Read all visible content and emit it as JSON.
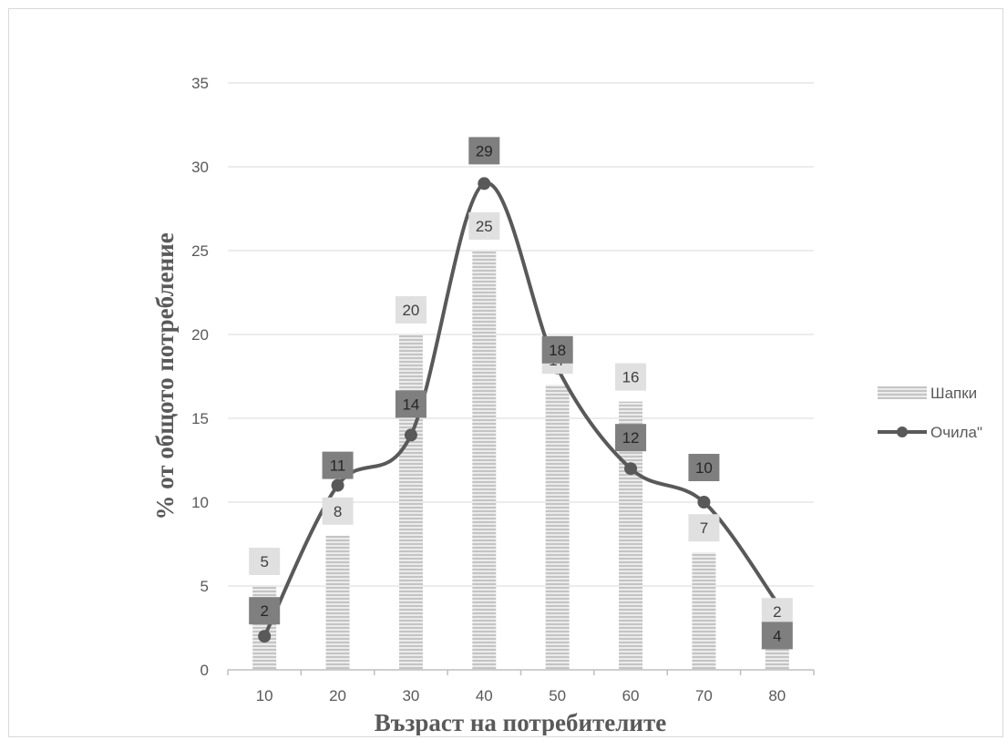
{
  "chart_data": {
    "type": "bar",
    "title": "",
    "xlabel": "Възраст на потребителите",
    "ylabel": "% от общото потребление",
    "categories": [
      "10",
      "20",
      "30",
      "40",
      "50",
      "60",
      "70",
      "80"
    ],
    "ylim": [
      0,
      35
    ],
    "yticks": [
      "0",
      "5",
      "10",
      "15",
      "20",
      "25",
      "30",
      "35"
    ],
    "grid": true,
    "legend_position": "right",
    "series": [
      {
        "name": "Шапки",
        "type": "bar",
        "values": [
          5,
          8,
          20,
          25,
          17,
          16,
          7,
          2
        ],
        "labels": [
          "5",
          "8",
          "20",
          "25",
          "17",
          "16",
          "7",
          "2"
        ],
        "color": "#c8c8c8"
      },
      {
        "name": "Очила\"",
        "type": "line",
        "smooth": true,
        "values": [
          2,
          11,
          14,
          29,
          18,
          12,
          10,
          4
        ],
        "labels": [
          "2",
          "11",
          "14",
          "29",
          "18",
          "12",
          "10",
          "4"
        ],
        "color": "#595959"
      }
    ]
  }
}
